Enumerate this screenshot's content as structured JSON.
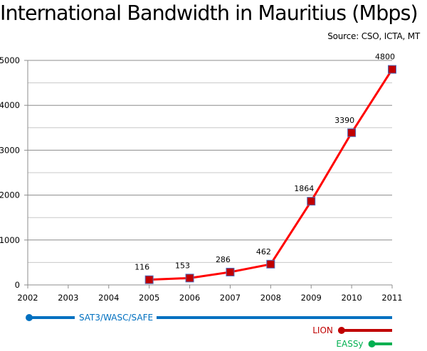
{
  "chart_data": {
    "type": "line",
    "title": "International Bandwidth in Mauritius (Mbps)",
    "subtitle": "Source: CSO, ICTA, MT",
    "xlabel": "",
    "ylabel": "",
    "categories": [
      "2002",
      "2003",
      "2004",
      "2005",
      "2006",
      "2007",
      "2008",
      "2009",
      "2010",
      "2011"
    ],
    "x_range": [
      2002,
      2011
    ],
    "ylim": [
      0,
      5000
    ],
    "y_ticks": [
      0,
      1000,
      2000,
      3000,
      4000,
      5000
    ],
    "y_minor_gridlines_every": 500,
    "grid": true,
    "legend": "none",
    "series": [
      {
        "name": "International Bandwidth (Mbps)",
        "color": "#ff0000",
        "marker_color": "#c00000",
        "marker_border": "#4f6fbf",
        "x": [
          2005,
          2006,
          2007,
          2008,
          2009,
          2010,
          2011
        ],
        "values": [
          116,
          153,
          286,
          462,
          1864,
          3390,
          4800
        ],
        "data_labels": [
          "116",
          "153",
          "286",
          "462",
          "1864",
          "3390",
          "4800"
        ]
      }
    ],
    "cable_timelines": [
      {
        "name": "SAT3/WASC/SAFE",
        "start": 2002,
        "end": 2011,
        "color": "#0070c0"
      },
      {
        "name": "LION",
        "start": 2009.75,
        "end": 2011,
        "color": "#c00000"
      },
      {
        "name": "EASSy",
        "start": 2010.5,
        "end": 2011,
        "color": "#00b050"
      }
    ]
  }
}
